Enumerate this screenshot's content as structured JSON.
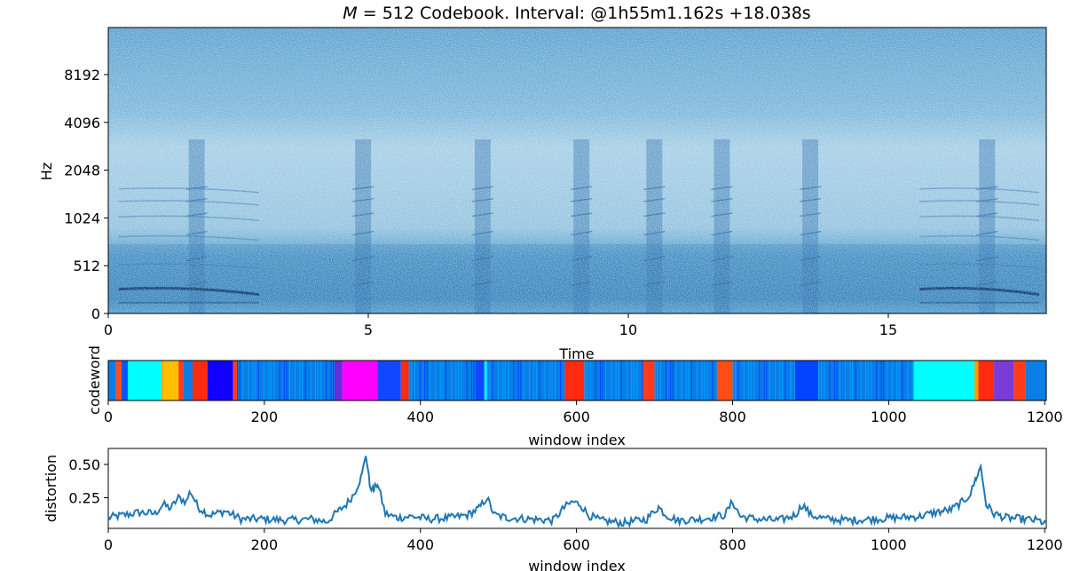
{
  "title": "M = 512 Codebook. Interval: @1h55m1.162s +18.038s",
  "title_parts": {
    "var": "M",
    "eq": " = 512 Codebook. Interval: @1h55m1.162s +18.038s"
  },
  "chart_data": [
    {
      "type": "heatmap",
      "name": "spectrogram",
      "xlabel": "Time",
      "ylabel": "Hz",
      "xlim": [
        0,
        18.038
      ],
      "ylim": [
        0,
        16384
      ],
      "yscale": "symlog",
      "x_ticks": [
        0,
        5,
        10,
        15
      ],
      "x_tick_labels": [
        "0",
        "5",
        "10",
        "15"
      ],
      "y_ticks": [
        0,
        512,
        1024,
        2048,
        4096,
        8192
      ],
      "y_tick_labels": [
        "0",
        "512",
        "1024",
        "2048",
        "4096",
        "8192"
      ],
      "colormap": "blues",
      "vertical_bursts_time": [
        1.7,
        4.9,
        7.2,
        9.1,
        10.5,
        11.8,
        13.5,
        16.9
      ],
      "low_band_tracks": [
        {
          "t_start": 0.2,
          "t_end": 2.9,
          "hz": 260
        },
        {
          "t_start": 15.6,
          "t_end": 17.9,
          "hz": 260
        }
      ]
    },
    {
      "type": "heatmap",
      "name": "codeword",
      "xlabel": "window index",
      "ylabel": "codeword",
      "xlim": [
        0,
        1202
      ],
      "x_ticks": [
        0,
        200,
        400,
        600,
        800,
        1000,
        1200
      ],
      "x_tick_labels": [
        "0",
        "200",
        "400",
        "600",
        "800",
        "1000",
        "1200"
      ],
      "segments": [
        {
          "start": 0,
          "end": 10,
          "color": "#0a7de6"
        },
        {
          "start": 10,
          "end": 17,
          "color": "#ff4d14"
        },
        {
          "start": 17,
          "end": 25,
          "color": "#0055ff"
        },
        {
          "start": 25,
          "end": 68,
          "color": "#00ffff"
        },
        {
          "start": 68,
          "end": 70,
          "color": "#f5a000"
        },
        {
          "start": 70,
          "end": 90,
          "color": "#ffbf00"
        },
        {
          "start": 90,
          "end": 96,
          "color": "#ff3b1d"
        },
        {
          "start": 96,
          "end": 108,
          "color": "#0a7de6"
        },
        {
          "start": 108,
          "end": 127,
          "color": "#ff2a10"
        },
        {
          "start": 127,
          "end": 160,
          "color": "#1100ff"
        },
        {
          "start": 160,
          "end": 165,
          "color": "#ff3b1d"
        },
        {
          "start": 165,
          "end": 290,
          "color": "#0a7de6"
        },
        {
          "start": 290,
          "end": 300,
          "color": "#6a2bd8"
        },
        {
          "start": 300,
          "end": 345,
          "color": "#ff00ff"
        },
        {
          "start": 345,
          "end": 375,
          "color": "#1148ff"
        },
        {
          "start": 375,
          "end": 385,
          "color": "#ff2a10"
        },
        {
          "start": 385,
          "end": 470,
          "color": "#0a7de6"
        },
        {
          "start": 470,
          "end": 482,
          "color": "#1148ff"
        },
        {
          "start": 482,
          "end": 485,
          "color": "#00ffff"
        },
        {
          "start": 485,
          "end": 585,
          "color": "#0a7de6"
        },
        {
          "start": 585,
          "end": 610,
          "color": "#ff2a10"
        },
        {
          "start": 610,
          "end": 685,
          "color": "#0a7de6"
        },
        {
          "start": 685,
          "end": 700,
          "color": "#ff3b1d"
        },
        {
          "start": 700,
          "end": 780,
          "color": "#0a7de6"
        },
        {
          "start": 780,
          "end": 800,
          "color": "#ff4d14"
        },
        {
          "start": 800,
          "end": 880,
          "color": "#0a7de6"
        },
        {
          "start": 880,
          "end": 910,
          "color": "#0044ff"
        },
        {
          "start": 910,
          "end": 1032,
          "color": "#0a7de6"
        },
        {
          "start": 1032,
          "end": 1110,
          "color": "#00ffff"
        },
        {
          "start": 1110,
          "end": 1115,
          "color": "#f5a000"
        },
        {
          "start": 1115,
          "end": 1135,
          "color": "#ff2a10"
        },
        {
          "start": 1135,
          "end": 1160,
          "color": "#7a3bd8"
        },
        {
          "start": 1160,
          "end": 1175,
          "color": "#ff3b1d"
        },
        {
          "start": 1175,
          "end": 1202,
          "color": "#0a7de6"
        }
      ]
    },
    {
      "type": "line",
      "name": "distortion",
      "xlabel": "window index",
      "ylabel": "distortion",
      "xlim": [
        0,
        1202
      ],
      "ylim": [
        0.02,
        0.62
      ],
      "x_ticks": [
        0,
        200,
        400,
        600,
        800,
        1000,
        1200
      ],
      "x_tick_labels": [
        "0",
        "200",
        "400",
        "600",
        "800",
        "1000",
        "1200"
      ],
      "y_ticks": [
        0.25,
        0.5
      ],
      "y_tick_labels": [
        "0.25",
        "0.50"
      ],
      "color": "#1f77b4",
      "x": [
        0,
        20,
        40,
        60,
        70,
        80,
        90,
        100,
        105,
        115,
        130,
        150,
        170,
        200,
        230,
        260,
        280,
        295,
        305,
        315,
        320,
        325,
        330,
        335,
        340,
        345,
        355,
        370,
        390,
        410,
        440,
        460,
        475,
        485,
        495,
        510,
        540,
        570,
        585,
        595,
        605,
        615,
        630,
        660,
        690,
        705,
        715,
        730,
        760,
        790,
        800,
        810,
        830,
        860,
        880,
        890,
        900,
        920,
        950,
        980,
        1010,
        1040,
        1060,
        1080,
        1095,
        1105,
        1112,
        1118,
        1125,
        1135,
        1150,
        1170,
        1190,
        1202
      ],
      "values": [
        0.1,
        0.12,
        0.14,
        0.13,
        0.2,
        0.17,
        0.25,
        0.22,
        0.3,
        0.18,
        0.12,
        0.15,
        0.09,
        0.09,
        0.08,
        0.09,
        0.07,
        0.15,
        0.2,
        0.28,
        0.35,
        0.42,
        0.58,
        0.35,
        0.3,
        0.36,
        0.13,
        0.1,
        0.11,
        0.09,
        0.1,
        0.12,
        0.17,
        0.25,
        0.12,
        0.1,
        0.09,
        0.08,
        0.18,
        0.22,
        0.2,
        0.12,
        0.08,
        0.06,
        0.09,
        0.18,
        0.12,
        0.08,
        0.09,
        0.12,
        0.22,
        0.11,
        0.09,
        0.08,
        0.12,
        0.2,
        0.12,
        0.09,
        0.08,
        0.09,
        0.1,
        0.11,
        0.14,
        0.16,
        0.22,
        0.28,
        0.4,
        0.48,
        0.2,
        0.13,
        0.1,
        0.09,
        0.08,
        0.06
      ]
    }
  ]
}
